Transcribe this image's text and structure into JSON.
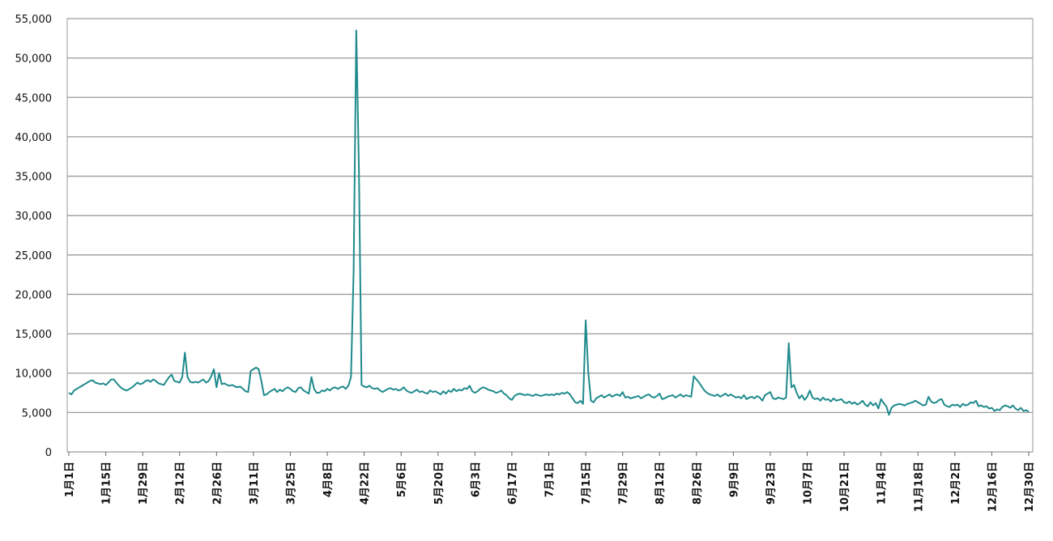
{
  "chart_data": {
    "type": "line",
    "categories": [
      "1月1日",
      null,
      null,
      null,
      null,
      null,
      null,
      null,
      null,
      null,
      null,
      null,
      null,
      null,
      "1月15日",
      null,
      null,
      null,
      null,
      null,
      null,
      null,
      null,
      null,
      null,
      null,
      null,
      null,
      "1月29日",
      null,
      null,
      null,
      null,
      null,
      null,
      null,
      null,
      null,
      null,
      null,
      null,
      null,
      "2月12日",
      null,
      null,
      null,
      null,
      null,
      null,
      null,
      null,
      null,
      null,
      null,
      null,
      null,
      "2月26日",
      null,
      null,
      null,
      null,
      null,
      null,
      null,
      null,
      null,
      null,
      null,
      null,
      null,
      "3月11日",
      null,
      null,
      null,
      null,
      null,
      null,
      null,
      null,
      null,
      null,
      null,
      null,
      null,
      "3月25日",
      null,
      null,
      null,
      null,
      null,
      null,
      null,
      null,
      null,
      null,
      null,
      null,
      null,
      "4月8日",
      null,
      null,
      null,
      null,
      null,
      null,
      null,
      null,
      null,
      null,
      null,
      null,
      null,
      "4月22日",
      null,
      null,
      null,
      null,
      null,
      null,
      null,
      null,
      null,
      null,
      null,
      null,
      null,
      "5月6日",
      null,
      null,
      null,
      null,
      null,
      null,
      null,
      null,
      null,
      null,
      null,
      null,
      null,
      "5月20日",
      null,
      null,
      null,
      null,
      null,
      null,
      null,
      null,
      null,
      null,
      null,
      null,
      null,
      "6月3日",
      null,
      null,
      null,
      null,
      null,
      null,
      null,
      null,
      null,
      null,
      null,
      null,
      null,
      "6月17日",
      null,
      null,
      null,
      null,
      null,
      null,
      null,
      null,
      null,
      null,
      null,
      null,
      null,
      "7月1日",
      null,
      null,
      null,
      null,
      null,
      null,
      null,
      null,
      null,
      null,
      null,
      null,
      null,
      "7月15日",
      null,
      null,
      null,
      null,
      null,
      null,
      null,
      null,
      null,
      null,
      null,
      null,
      null,
      "7月29日",
      null,
      null,
      null,
      null,
      null,
      null,
      null,
      null,
      null,
      null,
      null,
      null,
      null,
      "8月12日",
      null,
      null,
      null,
      null,
      null,
      null,
      null,
      null,
      null,
      null,
      null,
      null,
      null,
      "8月26日",
      null,
      null,
      null,
      null,
      null,
      null,
      null,
      null,
      null,
      null,
      null,
      null,
      null,
      "9月9日",
      null,
      null,
      null,
      null,
      null,
      null,
      null,
      null,
      null,
      null,
      null,
      null,
      null,
      "9月23日",
      null,
      null,
      null,
      null,
      null,
      null,
      null,
      null,
      null,
      null,
      null,
      null,
      null,
      "10月7日",
      null,
      null,
      null,
      null,
      null,
      null,
      null,
      null,
      null,
      null,
      null,
      null,
      null,
      "10月21日",
      null,
      null,
      null,
      null,
      null,
      null,
      null,
      null,
      null,
      null,
      null,
      null,
      null,
      "11月4日",
      null,
      null,
      null,
      null,
      null,
      null,
      null,
      null,
      null,
      null,
      null,
      null,
      null,
      "11月18日",
      null,
      null,
      null,
      null,
      null,
      null,
      null,
      null,
      null,
      null,
      null,
      null,
      null,
      "12月2日",
      null,
      null,
      null,
      null,
      null,
      null,
      null,
      null,
      null,
      null,
      null,
      null,
      null,
      "12月16日",
      null,
      null,
      null,
      null,
      null,
      null,
      null,
      null,
      null,
      null,
      null,
      null,
      null,
      "12月30日"
    ],
    "values": [
      7500,
      7300,
      7800,
      8000,
      8200,
      8400,
      8600,
      8800,
      9000,
      9100,
      8800,
      8700,
      8600,
      8700,
      8500,
      8800,
      9200,
      9200,
      8800,
      8400,
      8100,
      7900,
      7800,
      8000,
      8200,
      8500,
      8800,
      8600,
      8700,
      9000,
      9100,
      8900,
      9200,
      9000,
      8700,
      8600,
      8500,
      9000,
      9500,
      9800,
      9000,
      8900,
      8800,
      9500,
      12600,
      9500,
      8900,
      8800,
      8900,
      8800,
      9000,
      9200,
      8800,
      9000,
      9600,
      10500,
      8200,
      10000,
      8600,
      8700,
      8500,
      8400,
      8500,
      8300,
      8200,
      8300,
      8000,
      7700,
      7600,
      10300,
      10500,
      10700,
      10500,
      9000,
      7200,
      7300,
      7600,
      7800,
      8000,
      7600,
      7900,
      7700,
      8000,
      8200,
      8000,
      7700,
      7600,
      8100,
      8200,
      7800,
      7600,
      7400,
      9500,
      8000,
      7500,
      7500,
      7800,
      7700,
      8000,
      7800,
      8100,
      8200,
      8000,
      8200,
      8300,
      8000,
      8400,
      9500,
      23000,
      53500,
      36000,
      8500,
      8300,
      8200,
      8400,
      8100,
      8000,
      8100,
      7800,
      7600,
      7800,
      8000,
      8100,
      7900,
      8000,
      7800,
      7900,
      8200,
      7800,
      7600,
      7500,
      7700,
      7900,
      7600,
      7700,
      7500,
      7400,
      7800,
      7600,
      7700,
      7500,
      7300,
      7700,
      7400,
      7800,
      7600,
      8000,
      7700,
      7900,
      7800,
      8100,
      8000,
      8400,
      7700,
      7500,
      7700,
      8000,
      8200,
      8100,
      7900,
      7800,
      7700,
      7500,
      7600,
      7800,
      7400,
      7200,
      6800,
      6600,
      7100,
      7300,
      7400,
      7300,
      7200,
      7300,
      7200,
      7100,
      7300,
      7200,
      7100,
      7200,
      7300,
      7200,
      7300,
      7200,
      7400,
      7300,
      7500,
      7400,
      7600,
      7300,
      6800,
      6300,
      6200,
      6500,
      6100,
      16700,
      10000,
      6500,
      6300,
      6800,
      7000,
      7200,
      6900,
      7100,
      7300,
      7000,
      7200,
      7300,
      7100,
      7600,
      6900,
      7000,
      6800,
      6900,
      7000,
      7100,
      6800,
      7000,
      7200,
      7300,
      7000,
      6900,
      7100,
      7400,
      6700,
      6800,
      7000,
      7100,
      7200,
      6900,
      7100,
      7300,
      7000,
      7200,
      7100,
      7000,
      9600,
      9200,
      8800,
      8300,
      7800,
      7500,
      7300,
      7200,
      7100,
      7300,
      7000,
      7200,
      7400,
      7100,
      7300,
      7100,
      6900,
      7000,
      6800,
      7200,
      6700,
      6900,
      7000,
      6800,
      7100,
      6900,
      6500,
      7200,
      7400,
      7600,
      6800,
      6700,
      6900,
      6800,
      6700,
      6900,
      13800,
      8200,
      8500,
      7500,
      6800,
      7200,
      6600,
      7000,
      7800,
      6900,
      6700,
      6800,
      6500,
      6900,
      6600,
      6700,
      6400,
      6800,
      6500,
      6600,
      6700,
      6300,
      6200,
      6400,
      6100,
      6300,
      6000,
      6200,
      6500,
      6000,
      5800,
      6300,
      5900,
      6200,
      5500,
      6700,
      6200,
      5800,
      4700,
      5600,
      5900,
      6000,
      6100,
      6000,
      5900,
      6100,
      6200,
      6300,
      6500,
      6300,
      6100,
      5900,
      6000,
      7000,
      6400,
      6200,
      6300,
      6600,
      6700,
      6000,
      5800,
      5700,
      6000,
      5900,
      6000,
      5700,
      6100,
      5900,
      6000,
      6300,
      6200,
      6500,
      5800,
      5900,
      5700,
      5800,
      5500,
      5600,
      5200,
      5400,
      5300,
      5700,
      5900,
      5800,
      5600,
      5900,
      5500,
      5300,
      5600,
      5200,
      5300,
      5100
    ],
    "color": "#1f8a8c",
    "ylim": [
      0,
      55000
    ],
    "yticks": [
      0,
      {
        "value": 5000,
        "label": "5,000"
      },
      {
        "value": 10000,
        "label": "10,000"
      },
      {
        "value": 15000,
        "label": "15,000"
      },
      {
        "value": 20000,
        "label": "20,000"
      },
      {
        "value": 25000,
        "label": "25,000"
      },
      {
        "value": 30000,
        "label": "30,000"
      },
      {
        "value": 35000,
        "label": "35,000"
      },
      {
        "value": 40000,
        "label": "40,000"
      },
      {
        "value": 45000,
        "label": "45,000"
      },
      {
        "value": 50000,
        "label": "50,000"
      },
      {
        "value": 55000,
        "label": "55,000"
      }
    ],
    "grid": true
  }
}
